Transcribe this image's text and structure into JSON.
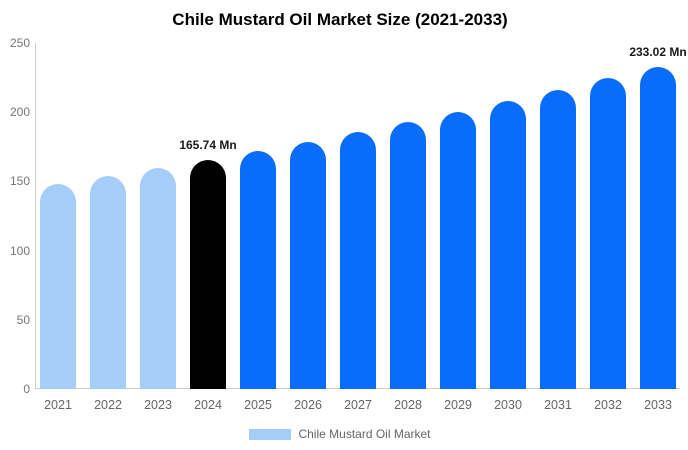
{
  "chart_data": {
    "type": "bar",
    "title": "Chile Mustard Oil Market Size (2021-2033)",
    "xlabel": "",
    "ylabel": "",
    "unit": "Mn",
    "categories": [
      "2021",
      "2022",
      "2023",
      "2024",
      "2025",
      "2026",
      "2027",
      "2028",
      "2029",
      "2030",
      "2031",
      "2032",
      "2033"
    ],
    "values": [
      147.9,
      153.6,
      159.6,
      165.74,
      172.1,
      178.8,
      185.7,
      192.9,
      200.3,
      208.0,
      216.1,
      224.4,
      233.02
    ],
    "ylim": [
      0,
      250
    ],
    "yticks": [
      0,
      50,
      100,
      150,
      200,
      250
    ],
    "grid": false,
    "legend": {
      "label": "Chile Mustard Oil Market",
      "position": "bottom",
      "swatch_color": "#a6cdf7"
    },
    "annotations": [
      {
        "category": "2024",
        "text": "165.74 Mn"
      },
      {
        "category": "2033",
        "text": "233.02 Mn"
      }
    ],
    "colors": {
      "historical": "#a6cdf7",
      "base_year": "#000000",
      "forecast": "#0a6cfa",
      "axis_line": "#cccccc",
      "tick_text": "#757575",
      "axis_label_text": "#666666",
      "annotation_text": "#1a1a1a",
      "title_text": "#000000"
    },
    "bar_colors": [
      "#a6cdf7",
      "#a6cdf7",
      "#a6cdf7",
      "#000000",
      "#0a6cfa",
      "#0a6cfa",
      "#0a6cfa",
      "#0a6cfa",
      "#0a6cfa",
      "#0a6cfa",
      "#0a6cfa",
      "#0a6cfa",
      "#0a6cfa"
    ]
  }
}
